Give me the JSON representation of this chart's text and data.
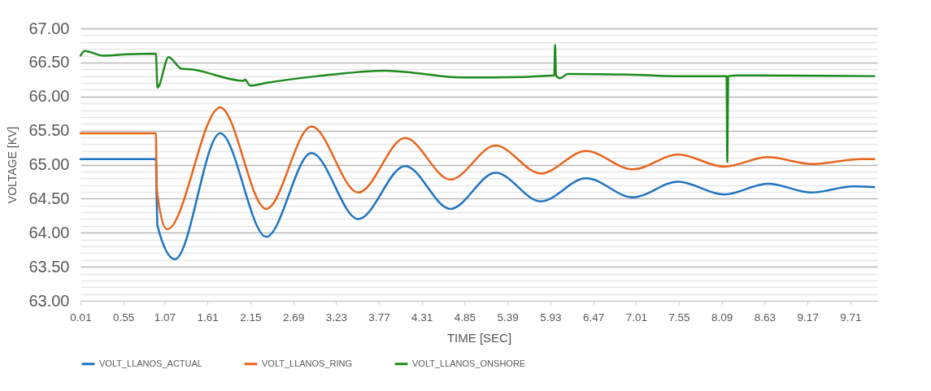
{
  "chart_data": {
    "type": "line",
    "xlabel": "TIME [SEC]",
    "ylabel": "VOLTAGE [KV]",
    "xlim": [
      0.01,
      10.05
    ],
    "xticks": [
      0.01,
      0.55,
      1.07,
      1.61,
      2.15,
      2.69,
      3.23,
      3.77,
      4.31,
      4.85,
      5.39,
      5.93,
      6.47,
      7.01,
      7.55,
      8.09,
      8.63,
      9.17,
      9.71
    ],
    "ylim": [
      63,
      67
    ],
    "yticks": [
      {
        "value": 63,
        "label": "63.00"
      },
      {
        "value": 63.1,
        "label": null
      },
      {
        "value": 63.2,
        "label": null
      },
      {
        "value": 63.3,
        "label": null
      },
      {
        "value": 63.4,
        "label": null
      },
      {
        "value": 63.5,
        "label": "63.50"
      },
      {
        "value": 63.6,
        "label": null
      },
      {
        "value": 63.7,
        "label": null
      },
      {
        "value": 63.8,
        "label": null
      },
      {
        "value": 63.9,
        "label": null
      },
      {
        "value": 64,
        "label": "64.00"
      },
      {
        "value": 64.1,
        "label": null
      },
      {
        "value": 64.2,
        "label": null
      },
      {
        "value": 64.3,
        "label": null
      },
      {
        "value": 64.4,
        "label": null
      },
      {
        "value": 64.5,
        "label": "64.50"
      },
      {
        "value": 64.6,
        "label": null
      },
      {
        "value": 64.7,
        "label": null
      },
      {
        "value": 64.8,
        "label": null
      },
      {
        "value": 64.9,
        "label": null
      },
      {
        "value": 65,
        "label": "65.00"
      },
      {
        "value": 65.1,
        "label": null
      },
      {
        "value": 65.2,
        "label": null
      },
      {
        "value": 65.3,
        "label": null
      },
      {
        "value": 65.4,
        "label": null
      },
      {
        "value": 65.5,
        "label": "65.50"
      },
      {
        "value": 65.6,
        "label": null
      },
      {
        "value": 65.7,
        "label": null
      },
      {
        "value": 65.8,
        "label": null
      },
      {
        "value": 65.9,
        "label": null
      },
      {
        "value": 66,
        "label": "66.00"
      },
      {
        "value": 66.1,
        "label": null
      },
      {
        "value": 66.2,
        "label": null
      },
      {
        "value": 66.3,
        "label": null
      },
      {
        "value": 66.4,
        "label": null
      },
      {
        "value": 66.5,
        "label": "66.50"
      },
      {
        "value": 66.6,
        "label": null
      },
      {
        "value": 66.7,
        "label": null
      },
      {
        "value": 66.8,
        "label": null
      },
      {
        "value": 66.9,
        "label": null
      },
      {
        "value": 67,
        "label": "67.00"
      }
    ],
    "grid": "y",
    "legend": "bottom",
    "line_style": "solid",
    "marker": "none",
    "series": [
      {
        "name": "VOLT_LLANOS_ACTUAL",
        "color": "#1f74c2",
        "x": [
          0.01,
          0.96,
          0.97,
          0.98,
          1.2,
          1.77,
          2.35,
          2.92,
          3.51,
          4.1,
          4.67,
          5.24,
          5.81,
          6.38,
          6.97,
          7.54,
          8.12,
          8.67,
          9.22,
          9.75,
          10.01
        ],
        "values": [
          65.08,
          65.08,
          64.5,
          64.1,
          63.61,
          65.46,
          63.94,
          65.17,
          64.2,
          64.98,
          64.35,
          64.88,
          64.46,
          64.8,
          64.52,
          64.75,
          64.56,
          64.72,
          64.59,
          64.68,
          64.67
        ]
      },
      {
        "name": "VOLT_LLANOS_RING",
        "color": "#e8651c",
        "x": [
          0.01,
          0.96,
          0.97,
          0.98,
          1.1,
          1.77,
          2.35,
          2.92,
          3.51,
          4.1,
          4.67,
          5.24,
          5.81,
          6.38,
          6.97,
          7.54,
          8.12,
          8.67,
          9.22,
          9.85,
          10.01
        ],
        "values": [
          65.46,
          65.46,
          64.7,
          64.55,
          64.05,
          65.84,
          64.35,
          65.56,
          64.59,
          65.39,
          64.78,
          65.28,
          64.87,
          65.2,
          64.93,
          65.15,
          64.97,
          65.11,
          65.01,
          65.08,
          65.08
        ]
      },
      {
        "name": "VOLT_LLANOS_ONSHORE",
        "color": "#1e8a1e",
        "x": [
          0.01,
          0.06,
          0.3,
          0.6,
          0.96,
          0.98,
          1.12,
          1.28,
          1.4,
          2.07,
          2.08,
          2.15,
          2.35,
          3.0,
          3.86,
          4.2,
          4.8,
          5.2,
          5.98,
          5.99,
          6.0,
          6.05,
          6.15,
          7.0,
          7.5,
          8.15,
          8.16,
          8.17,
          8.3,
          10.01
        ],
        "values": [
          66.6,
          66.67,
          66.6,
          66.62,
          66.63,
          66.13,
          66.58,
          66.41,
          66.4,
          66.23,
          66.25,
          66.16,
          66.2,
          66.3,
          66.38,
          66.35,
          66.28,
          66.28,
          66.31,
          66.76,
          66.31,
          66.27,
          66.33,
          66.32,
          66.3,
          66.3,
          65.04,
          66.3,
          66.31,
          66.3
        ]
      }
    ]
  }
}
